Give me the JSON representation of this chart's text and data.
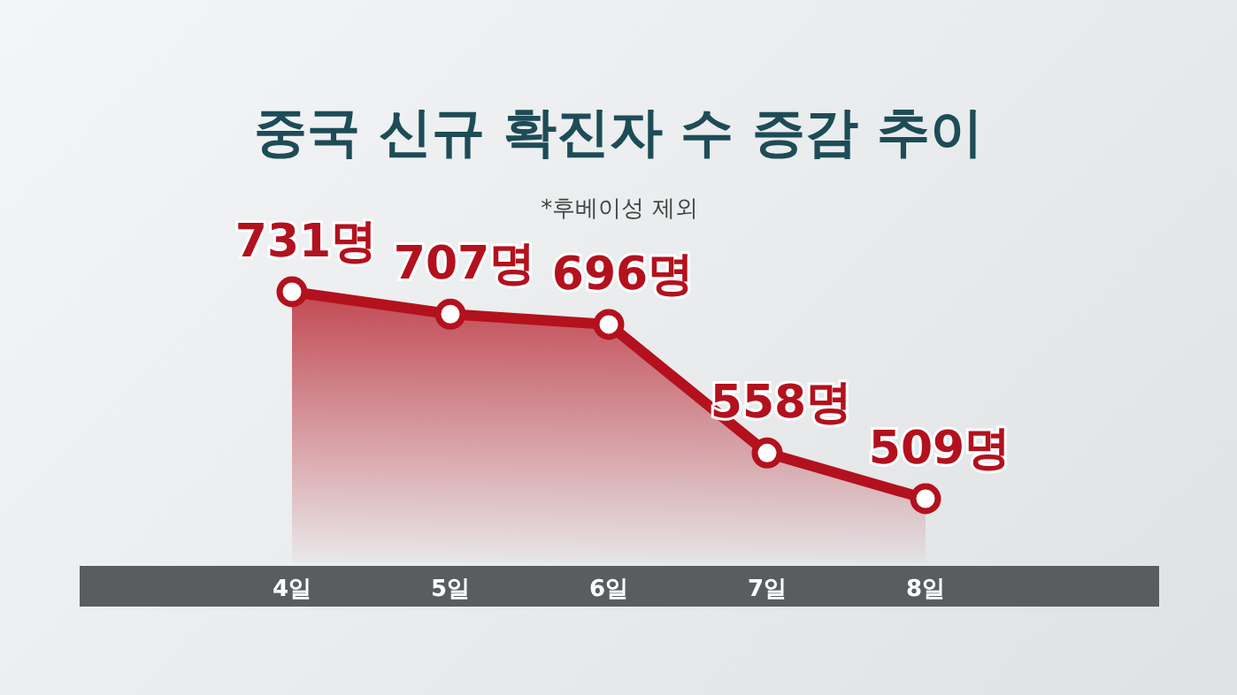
{
  "chart_data": {
    "type": "area",
    "title": "중국 신규 확진자 수 증감 추이",
    "subtitle": "*후베이성 제외",
    "categories": [
      "4일",
      "5일",
      "6일",
      "7일",
      "8일"
    ],
    "values": [
      731,
      707,
      696,
      558,
      509
    ],
    "value_labels": [
      "731명",
      "707명",
      "696명",
      "558명",
      "509명"
    ],
    "color": "#b3111d",
    "marker": "circle",
    "line_style": "solid"
  }
}
